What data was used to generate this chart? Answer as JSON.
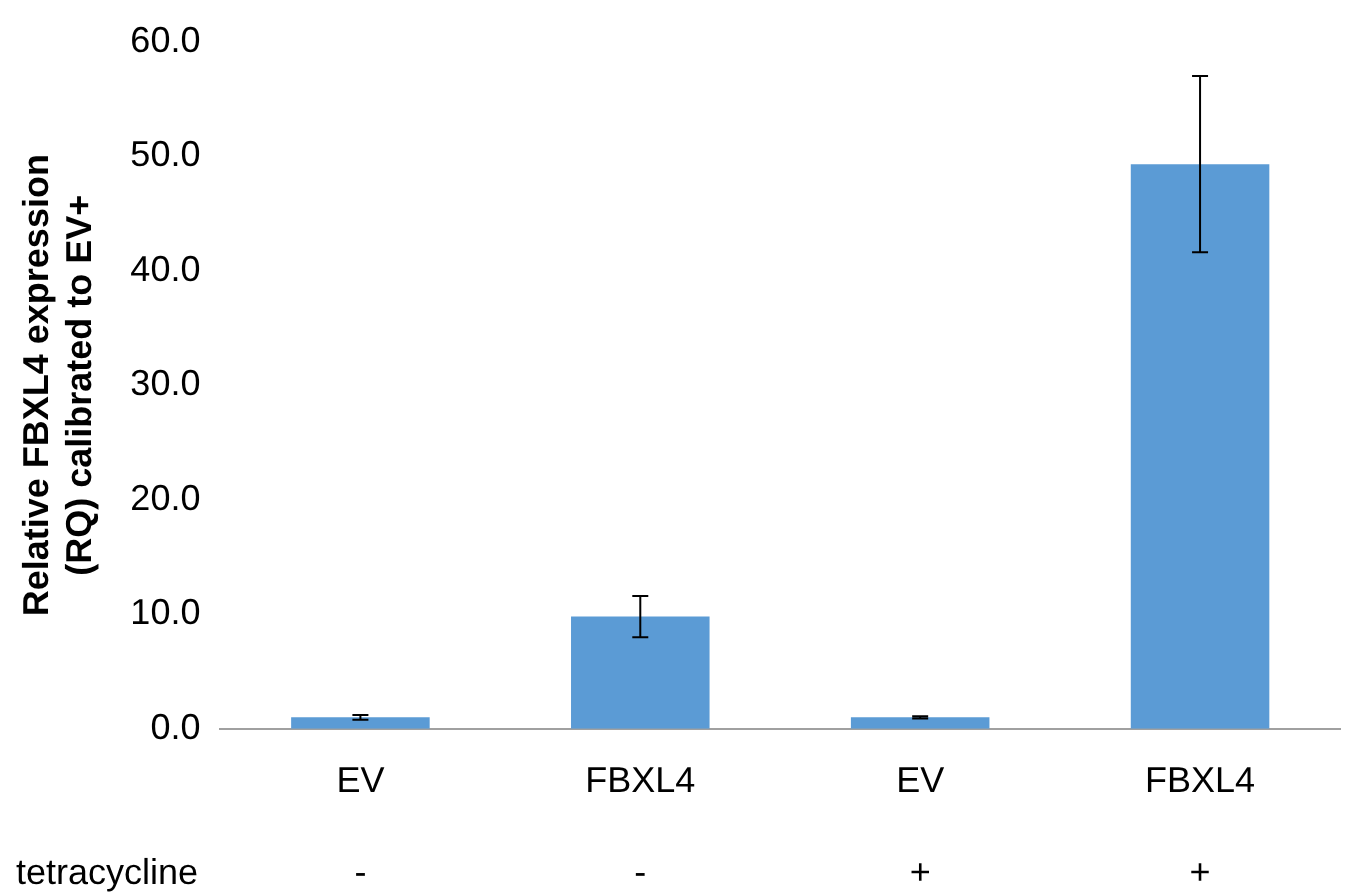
{
  "chart_data": {
    "type": "bar",
    "ylabel": "Relative FBXL4 expression (RQ) calibrated to EV+",
    "categories": [
      "EV",
      "FBXL4",
      "EV",
      "FBXL4"
    ],
    "values": [
      1.0,
      9.8,
      1.0,
      49.3
    ],
    "errors": [
      0.2,
      1.8,
      0.1,
      7.7
    ],
    "color": "#5b9bd5",
    "ylim": [
      0,
      60
    ],
    "yticks": [
      {
        "value": 0,
        "label": "0.0"
      },
      {
        "value": 10,
        "label": "10.0"
      },
      {
        "value": 20,
        "label": "20.0"
      },
      {
        "value": 30,
        "label": "30.0"
      },
      {
        "value": 40,
        "label": "40.0"
      },
      {
        "value": 50,
        "label": "50.0"
      },
      {
        "value": 60,
        "label": "60.0"
      }
    ],
    "grid": false,
    "legend": false,
    "annotations": [
      "tetracycline",
      "-",
      "-",
      "+",
      "+"
    ]
  }
}
